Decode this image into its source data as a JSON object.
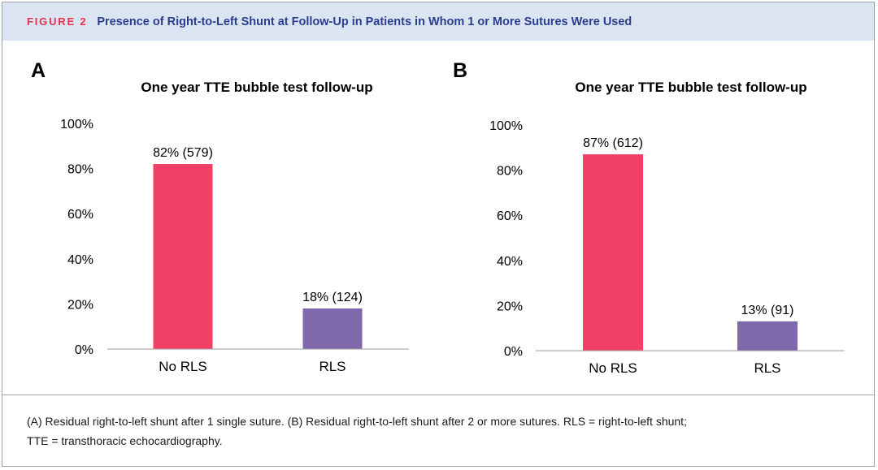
{
  "figure": {
    "label": "FIGURE 2",
    "title": "Presence of Right-to-Left Shunt at Follow-Up in Patients in Whom 1 or More Sutures Were Used"
  },
  "colors": {
    "header_bg": "#dbe5f1",
    "label_red": "#e8304f",
    "title_blue": "#2a3d8f",
    "bar_no_rls": "#f23f66",
    "bar_rls": "#8068ad"
  },
  "chart_data": [
    {
      "panel": "A",
      "type": "bar",
      "title": "One year TTE bubble test follow-up",
      "categories": [
        "No RLS",
        "RLS"
      ],
      "values": [
        82,
        18
      ],
      "data_labels": [
        "82% (579)",
        "18% (124)"
      ],
      "ylim": [
        0,
        100
      ],
      "yticks": [
        "0%",
        "20%",
        "40%",
        "60%",
        "80%",
        "100%"
      ],
      "ytick_values": [
        0,
        20,
        40,
        60,
        80,
        100
      ],
      "grid": false,
      "xlabel": "",
      "ylabel": ""
    },
    {
      "panel": "B",
      "type": "bar",
      "title": "One year TTE bubble test follow-up",
      "categories": [
        "No RLS",
        "RLS"
      ],
      "values": [
        87,
        13
      ],
      "data_labels": [
        "87% (612)",
        "13% (91)"
      ],
      "ylim": [
        0,
        100
      ],
      "yticks": [
        "0%",
        "20%",
        "40%",
        "60%",
        "80%",
        "100%"
      ],
      "ytick_values": [
        0,
        20,
        40,
        60,
        80,
        100
      ],
      "grid": false,
      "xlabel": "",
      "ylabel": ""
    }
  ],
  "caption": {
    "line1": "(A) Residual right-to-left shunt after 1 single suture. (B) Residual right-to-left shunt after 2 or more sutures. RLS = right-to-left shunt;",
    "line2": "TTE = transthoracic echocardiography."
  }
}
